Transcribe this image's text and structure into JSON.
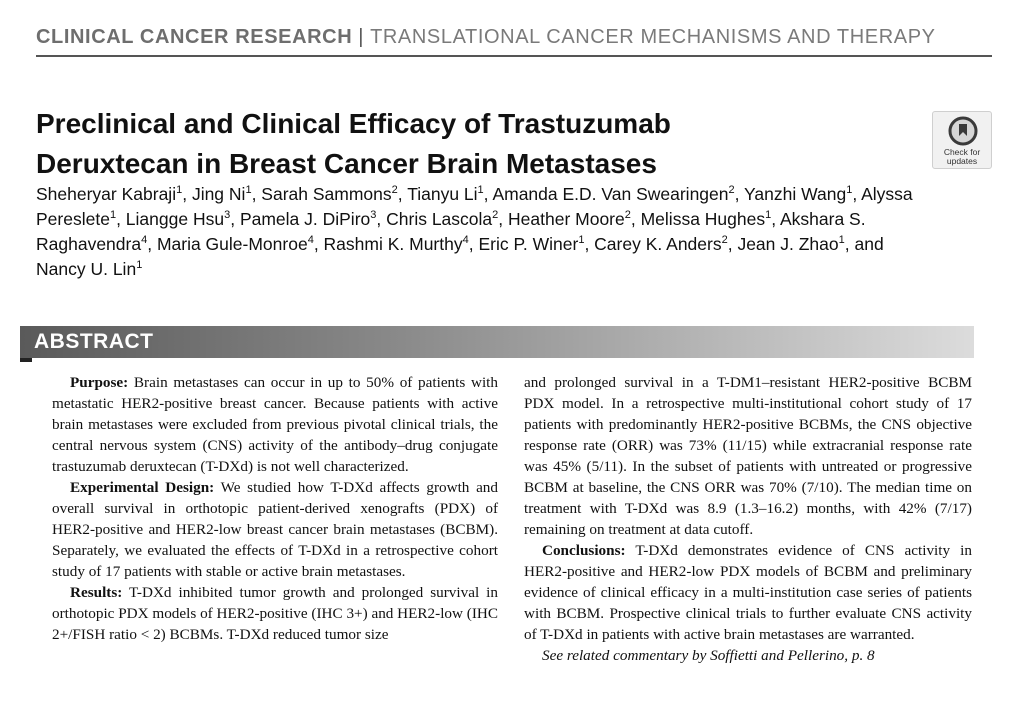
{
  "header": {
    "journal": "CLINICAL CANCER RESEARCH",
    "separator": "|",
    "section": "TRANSLATIONAL CANCER MECHANISMS AND THERAPY"
  },
  "article": {
    "title": "Preclinical and Clinical Efficacy of Trastuzumab Deruxtecan in Breast Cancer Brain Metastases",
    "badge_line1": "Check for",
    "badge_line2": "updates",
    "badge_icon": "check-for-updates-icon",
    "authors": [
      {
        "name": "Sheheryar Kabraji",
        "aff": "1",
        "sep": ", "
      },
      {
        "name": "Jing Ni",
        "aff": "1",
        "sep": ", "
      },
      {
        "name": "Sarah Sammons",
        "aff": "2",
        "sep": ", "
      },
      {
        "name": "Tianyu Li",
        "aff": "1",
        "sep": ", "
      },
      {
        "name": "Amanda E.D. Van Swearingen",
        "aff": "2",
        "sep": ", "
      },
      {
        "name": "Yanzhi Wang",
        "aff": "1",
        "sep": ", "
      },
      {
        "name": "Alyssa Pereslete",
        "aff": "1",
        "sep": ", "
      },
      {
        "name": "Liangge Hsu",
        "aff": "3",
        "sep": ", "
      },
      {
        "name": "Pamela J. DiPiro",
        "aff": "3",
        "sep": ", "
      },
      {
        "name": "Chris Lascola",
        "aff": "2",
        "sep": ", "
      },
      {
        "name": "Heather Moore",
        "aff": "2",
        "sep": ", "
      },
      {
        "name": "Melissa Hughes",
        "aff": "1",
        "sep": ", "
      },
      {
        "name": "Akshara S. Raghavendra",
        "aff": "4",
        "sep": ", "
      },
      {
        "name": "Maria Gule-Monroe",
        "aff": "4",
        "sep": ", "
      },
      {
        "name": "Rashmi K. Murthy",
        "aff": "4",
        "sep": ", "
      },
      {
        "name": "Eric P. Winer",
        "aff": "1",
        "sep": ", "
      },
      {
        "name": "Carey K. Anders",
        "aff": "2",
        "sep": ", "
      },
      {
        "name": "Jean J. Zhao",
        "aff": "1",
        "sep": ", and "
      },
      {
        "name": "Nancy U. Lin",
        "aff": "1",
        "sep": ""
      }
    ]
  },
  "abstract": {
    "heading": "ABSTRACT",
    "purpose_label": "Purpose:",
    "purpose_text": "Brain metastases can occur in up to 50% of patients with metastatic HER2-positive breast cancer. Because patients with active brain metastases were excluded from previous pivotal clinical trials, the central nervous system (CNS) activity of the antibody–drug conjugate trastuzumab deruxtecan (T-DXd) is not well characterized.",
    "design_label": "Experimental Design:",
    "design_text": "We studied how T-DXd affects growth and overall survival in orthotopic patient-derived xenografts (PDX) of HER2-positive and HER2-low breast cancer brain metastases (BCBM). Separately, we evaluated the effects of T-DXd in a retrospective cohort study of 17 patients with stable or active brain metastases.",
    "results_label": "Results:",
    "results_text_left": "T-DXd inhibited tumor growth and prolonged survival in orthotopic PDX models of HER2-positive (IHC 3+) and HER2-low (IHC 2+/FISH ratio < 2) BCBMs. T-DXd reduced tumor size",
    "results_text_right": "and prolonged survival in a T-DM1–resistant HER2-positive BCBM PDX model. In a retrospective multi-institutional cohort study of 17 patients with predominantly HER2-positive BCBMs, the CNS objective response rate (ORR) was 73% (11/15) while extracranial response rate was 45% (5/11). In the subset of patients with untreated or progressive BCBM at baseline, the CNS ORR was 70% (7/10). The median time on treatment with T-DXd was 8.9 (1.3–16.2) months, with 42% (7/17) remaining on treatment at data cutoff.",
    "conclusions_label": "Conclusions:",
    "conclusions_text": "T-DXd demonstrates evidence of CNS activity in HER2-positive and HER2-low PDX models of BCBM and preliminary evidence of clinical efficacy in a multi-institution case series of patients with BCBM. Prospective clinical trials to further evaluate CNS activity of T-DXd in patients with active brain metastases are warranted.",
    "related": "See related commentary by Soffietti and Pellerino, p. 8"
  }
}
